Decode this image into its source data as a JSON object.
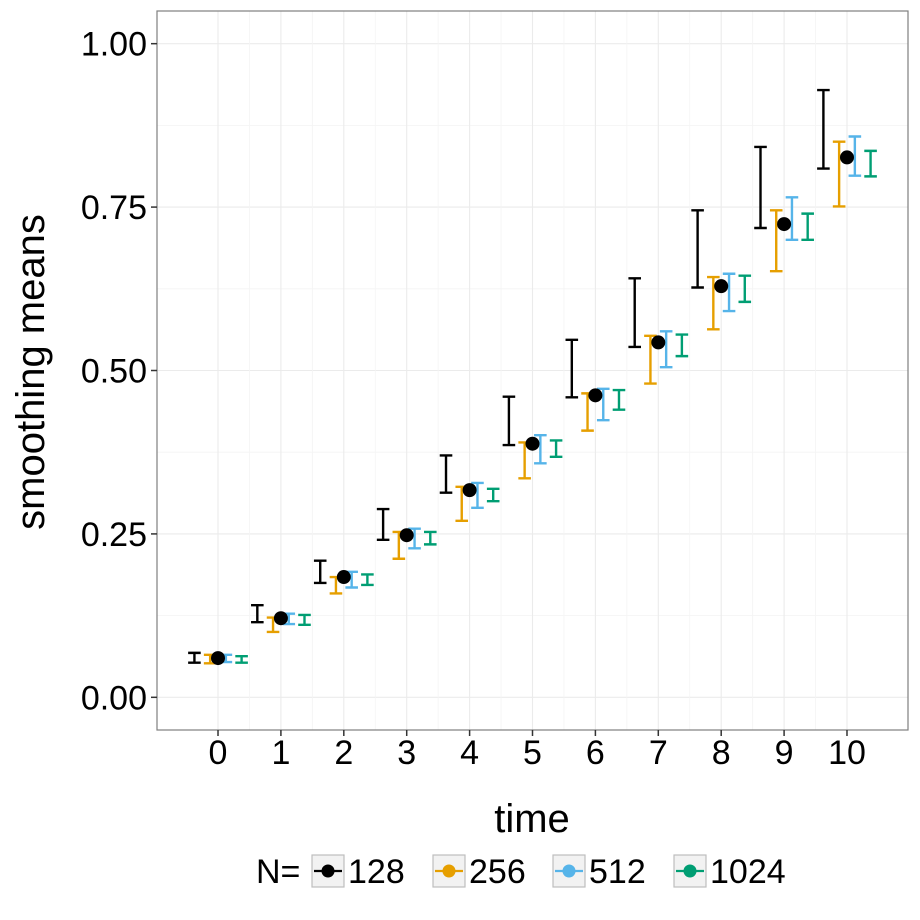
{
  "chart_data": {
    "type": "errorbar-point",
    "title": "",
    "xlabel": "time",
    "ylabel": "smoothing means",
    "x": [
      0,
      1,
      2,
      3,
      4,
      5,
      6,
      7,
      8,
      9,
      10
    ],
    "x_tick_labels": [
      "0",
      "1",
      "2",
      "3",
      "4",
      "5",
      "6",
      "7",
      "8",
      "9",
      "10"
    ],
    "y_tick_values": [
      0.0,
      0.25,
      0.5,
      0.75,
      1.0
    ],
    "y_tick_labels": [
      "0.00",
      "0.25",
      "0.50",
      "0.75",
      "1.00"
    ],
    "xlim": [
      -0.97,
      10.97
    ],
    "ylim": [
      -0.05,
      1.05
    ],
    "grid": true,
    "legend_title": "N=",
    "legend_position": "bottom",
    "point_mean": [
      0.06,
      0.121,
      0.184,
      0.248,
      0.317,
      0.388,
      0.462,
      0.543,
      0.629,
      0.724,
      0.826
    ],
    "series": [
      {
        "name": "128",
        "color": "#000000",
        "lower": [
          0.053,
          0.115,
          0.175,
          0.241,
          0.313,
          0.386,
          0.459,
          0.536,
          0.627,
          0.718,
          0.809
        ],
        "upper": [
          0.068,
          0.141,
          0.209,
          0.288,
          0.37,
          0.46,
          0.547,
          0.641,
          0.745,
          0.842,
          0.929
        ]
      },
      {
        "name": "256",
        "color": "#E69F00",
        "lower": [
          0.052,
          0.1,
          0.159,
          0.212,
          0.27,
          0.335,
          0.408,
          0.48,
          0.563,
          0.652,
          0.751
        ],
        "upper": [
          0.065,
          0.122,
          0.184,
          0.253,
          0.322,
          0.39,
          0.465,
          0.553,
          0.643,
          0.745,
          0.85
        ]
      },
      {
        "name": "512",
        "color": "#56B4E9",
        "lower": [
          0.054,
          0.112,
          0.168,
          0.228,
          0.29,
          0.358,
          0.424,
          0.505,
          0.591,
          0.7,
          0.798
        ],
        "upper": [
          0.065,
          0.128,
          0.192,
          0.258,
          0.328,
          0.401,
          0.472,
          0.56,
          0.648,
          0.765,
          0.858
        ]
      },
      {
        "name": "1024",
        "color": "#009E73",
        "lower": [
          0.053,
          0.111,
          0.172,
          0.234,
          0.3,
          0.368,
          0.44,
          0.522,
          0.605,
          0.7,
          0.797
        ],
        "upper": [
          0.063,
          0.126,
          0.188,
          0.253,
          0.319,
          0.393,
          0.47,
          0.555,
          0.645,
          0.74,
          0.836
        ]
      }
    ]
  }
}
